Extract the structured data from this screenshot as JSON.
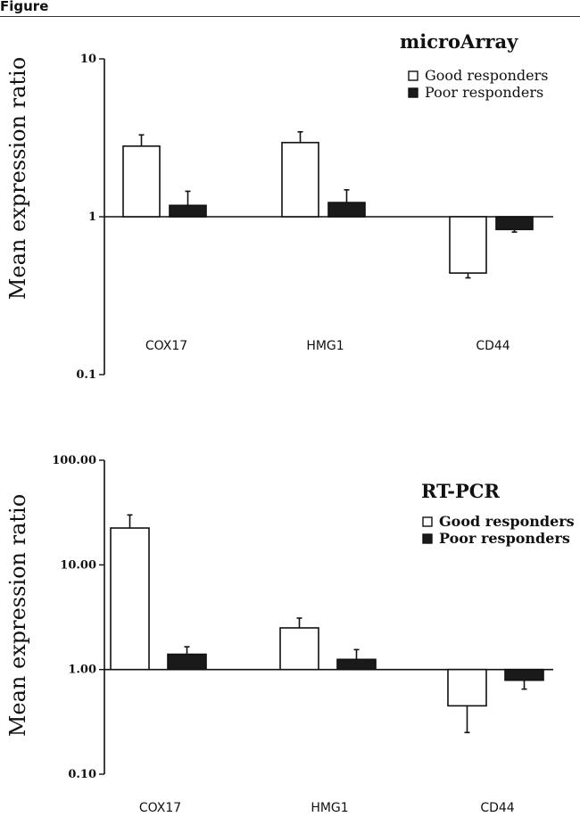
{
  "figure": {
    "label": "Figure"
  },
  "chart_data": [
    {
      "type": "bar",
      "title": "microArray",
      "ylabel": "Mean expression ratio",
      "xlabel": "",
      "yscale": "log",
      "baseline": 1,
      "ylim": [
        0.1,
        10
      ],
      "yticks": [
        {
          "value": 10,
          "label": "10"
        },
        {
          "value": 1,
          "label": "1"
        },
        {
          "value": 0.1,
          "label": "0.1"
        }
      ],
      "categories": [
        "COX17",
        "HMG1",
        "CD44"
      ],
      "series": [
        {
          "name": "Good responders",
          "fill": "#ffffff",
          "values": [
            2.8,
            2.95,
            0.44
          ],
          "errors": [
            3.3,
            3.45,
            0.41
          ]
        },
        {
          "name": "Poor responders",
          "fill": "#1a1a1a",
          "values": [
            1.18,
            1.23,
            0.83
          ],
          "errors": [
            1.45,
            1.48,
            0.8
          ]
        }
      ],
      "legend_position": "top-right",
      "grid": false
    },
    {
      "type": "bar",
      "title": "RT-PCR",
      "ylabel": "Mean expression ratio",
      "xlabel": "",
      "yscale": "log",
      "baseline": 1,
      "ylim": [
        0.1,
        100
      ],
      "yticks": [
        {
          "value": 100,
          "label": "100.00"
        },
        {
          "value": 10,
          "label": "10.00"
        },
        {
          "value": 1,
          "label": "1.00"
        },
        {
          "value": 0.1,
          "label": "0.10"
        }
      ],
      "categories": [
        "COX17",
        "HMG1",
        "CD44"
      ],
      "series": [
        {
          "name": "Good responders",
          "fill": "#ffffff",
          "values": [
            22.5,
            2.5,
            0.45
          ],
          "errors": [
            30,
            3.1,
            0.25
          ]
        },
        {
          "name": "Poor responders",
          "fill": "#1a1a1a",
          "values": [
            1.4,
            1.25,
            0.79
          ],
          "errors": [
            1.65,
            1.55,
            0.65
          ]
        }
      ],
      "legend_position": "top-right",
      "grid": false
    }
  ]
}
